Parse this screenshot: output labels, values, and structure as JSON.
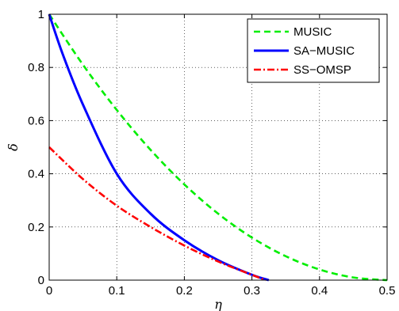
{
  "chart_data": {
    "type": "line",
    "xlabel": "η",
    "ylabel": "δ",
    "xlim": [
      0,
      0.5
    ],
    "ylim": [
      0,
      1
    ],
    "xticks": [
      "0",
      "0.1",
      "0.2",
      "0.3",
      "0.4",
      "0.5"
    ],
    "yticks": [
      "0",
      "0.2",
      "0.4",
      "0.6",
      "0.8",
      "1"
    ],
    "grid": true,
    "legend_position": "top-right",
    "series": [
      {
        "name": "MUSIC",
        "color": "#00ee00",
        "style": "dashed",
        "x": [
          0,
          0.05,
          0.1,
          0.15,
          0.2,
          0.25,
          0.3,
          0.35,
          0.4,
          0.45,
          0.5
        ],
        "y": [
          1.0,
          0.81,
          0.64,
          0.49,
          0.36,
          0.25,
          0.16,
          0.09,
          0.04,
          0.01,
          0.0
        ]
      },
      {
        "name": "SA−MUSIC",
        "color": "#0000ff",
        "style": "solid",
        "x": [
          0,
          0.02,
          0.05,
          0.1,
          0.15,
          0.2,
          0.25,
          0.3,
          0.325
        ],
        "y": [
          1.0,
          0.85,
          0.66,
          0.4,
          0.25,
          0.15,
          0.075,
          0.02,
          0.0
        ]
      },
      {
        "name": "SS−OMSP",
        "color": "#ff0000",
        "style": "dashdot",
        "x": [
          0,
          0.05,
          0.1,
          0.15,
          0.2,
          0.25,
          0.3,
          0.32
        ],
        "y": [
          0.5,
          0.38,
          0.28,
          0.2,
          0.13,
          0.07,
          0.02,
          0.0
        ]
      }
    ]
  }
}
